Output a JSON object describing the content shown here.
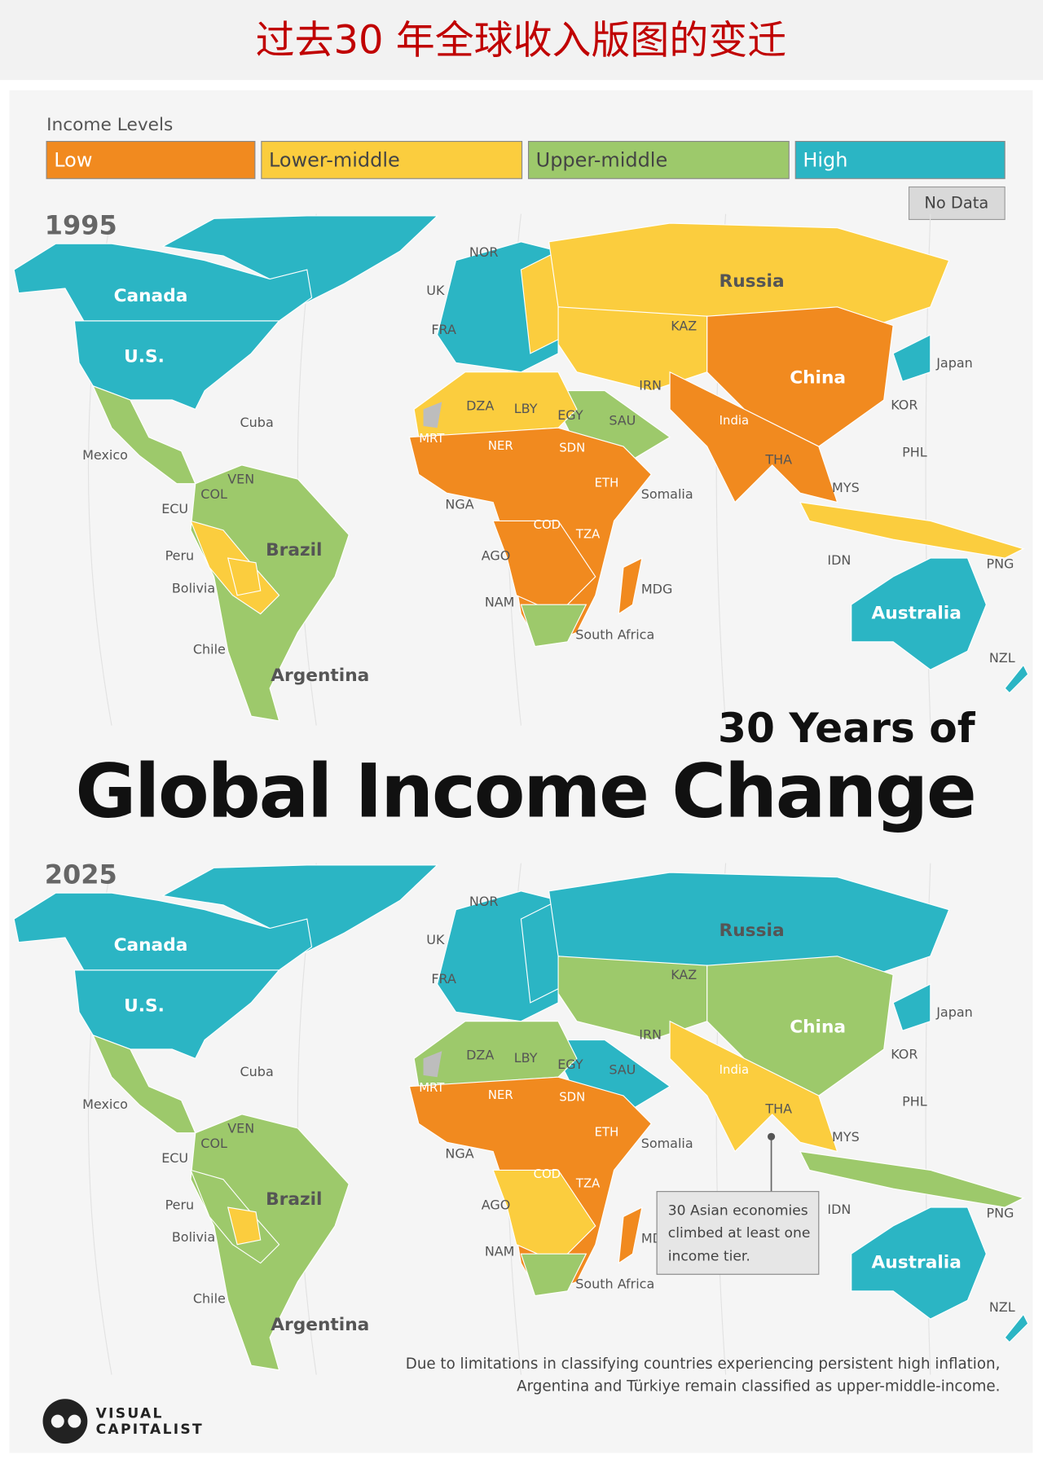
{
  "header": {
    "title": "过去30 年全球收入版图的变迁"
  },
  "legend": {
    "title": "Income Levels",
    "items": [
      "Low",
      "Lower-middle",
      "Upper-middle",
      "High"
    ],
    "colors": [
      "#f18a1f",
      "#fbcd3e",
      "#9dc96b",
      "#2bb5c4"
    ],
    "no_data": "No Data",
    "no_data_color": "#bdbdbd"
  },
  "maps": [
    {
      "year": "1995"
    },
    {
      "year": "2025"
    }
  ],
  "country_labels": [
    "Canada",
    "U.S.",
    "Mexico",
    "Cuba",
    "VEN",
    "COL",
    "ECU",
    "Peru",
    "Bolivia",
    "Brazil",
    "Chile",
    "Argentina",
    "NOR",
    "UK",
    "FRA",
    "DZA",
    "LBY",
    "EGY",
    "SAU",
    "MRT",
    "NER",
    "SDN",
    "ETH",
    "Somalia",
    "NGA",
    "COD",
    "TZA",
    "AGO",
    "NAM",
    "MDG",
    "South Africa",
    "Russia",
    "KAZ",
    "IRN",
    "China",
    "India",
    "Japan",
    "KOR",
    "PHL",
    "THA",
    "MYS",
    "IDN",
    "PNG",
    "Australia",
    "NZL"
  ],
  "title": {
    "line1": "30 Years of",
    "line2": "Global Income Change"
  },
  "annotation": [
    "30 Asian economies",
    "climbed at least one",
    "income tier."
  ],
  "footnote": [
    "Due to limitations in classifying countries experiencing persistent high inflation,",
    "Argentina and Türkiye remain classified as upper-middle-income."
  ],
  "brand": [
    "VISUAL",
    "CAPITALIST"
  ]
}
